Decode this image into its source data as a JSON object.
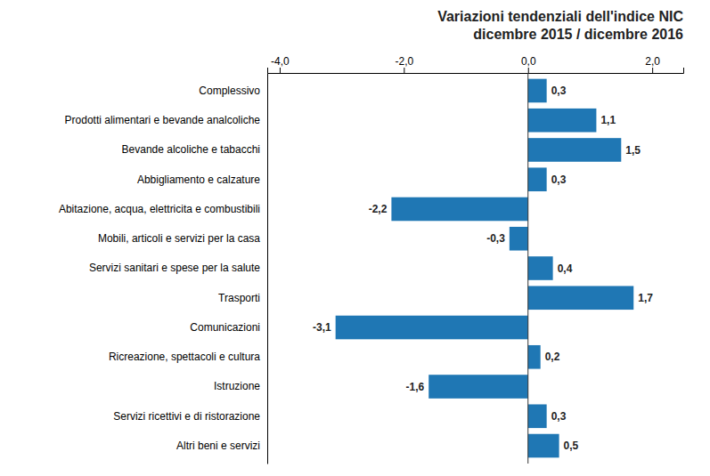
{
  "chart_data": {
    "type": "bar",
    "orientation": "horizontal",
    "title": "Variazioni tendenziali dell'indice NIC\ndicembre 2015 / dicembre 2016",
    "categories": [
      "Complessivo",
      "Prodotti alimentari e bevande analcoliche",
      "Bevande alcoliche e tabacchi",
      "Abbigliamento e calzature",
      "Abitazione, acqua, elettricita e combustibili",
      "Mobili, articoli e servizi per la casa",
      "Servizi sanitari e spese per la salute",
      "Trasporti",
      "Comunicazioni",
      "Ricreazione, spettacoli e cultura",
      "Istruzione",
      "Servizi ricettivi e di ristorazione",
      "Altri beni e servizi"
    ],
    "values": [
      0.3,
      1.1,
      1.5,
      0.3,
      -2.2,
      -0.3,
      0.4,
      1.7,
      -3.1,
      0.2,
      -1.6,
      0.3,
      0.5
    ],
    "value_labels": [
      "0,3",
      "1,1",
      "1,5",
      "0,3",
      "-2,2",
      "-0,3",
      "0,4",
      "1,7",
      "-3,1",
      "0,2",
      "-1,6",
      "0,3",
      "0,5"
    ],
    "data_labels": true,
    "xlim": [
      -4.2,
      2.5
    ],
    "xticks": [
      {
        "value": -4.0,
        "label": "-4,0"
      },
      {
        "value": -2.0,
        "label": "-2,0"
      },
      {
        "value": 0.0,
        "label": "0,0"
      },
      {
        "value": 2.0,
        "label": "2,0"
      }
    ],
    "grid": false
  }
}
